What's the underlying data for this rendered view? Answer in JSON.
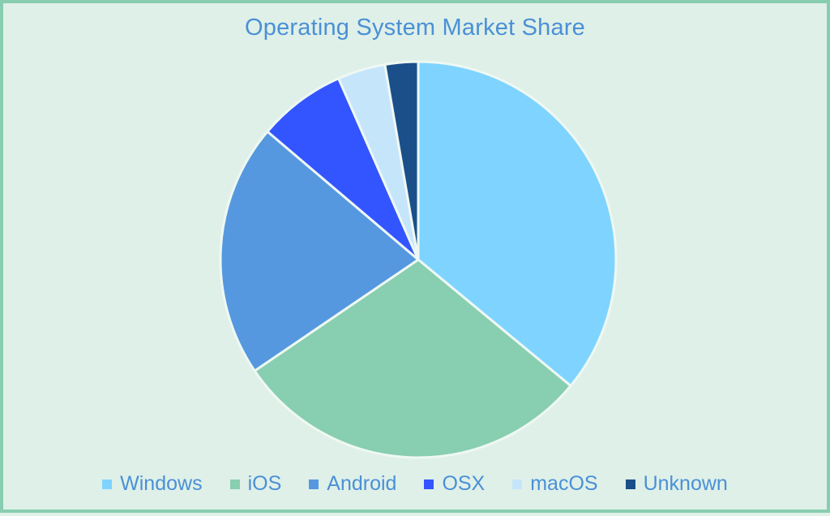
{
  "chart_data": {
    "type": "pie",
    "title": "Operating System Market Share",
    "start_angle_deg": 0,
    "direction": "clockwise",
    "legend_position": "bottom",
    "slices": [
      {
        "label": "Windows",
        "value": 36.0,
        "color": "#7fd4ff"
      },
      {
        "label": "iOS",
        "value": 29.5,
        "color": "#88ceb0"
      },
      {
        "label": "Android",
        "value": 20.7,
        "color": "#5598df"
      },
      {
        "label": "OSX",
        "value": 7.2,
        "color": "#3355ff"
      },
      {
        "label": "macOS",
        "value": 3.9,
        "color": "#c5e5fb"
      },
      {
        "label": "Unknown",
        "value": 2.7,
        "color": "#1a4f8a"
      }
    ]
  }
}
